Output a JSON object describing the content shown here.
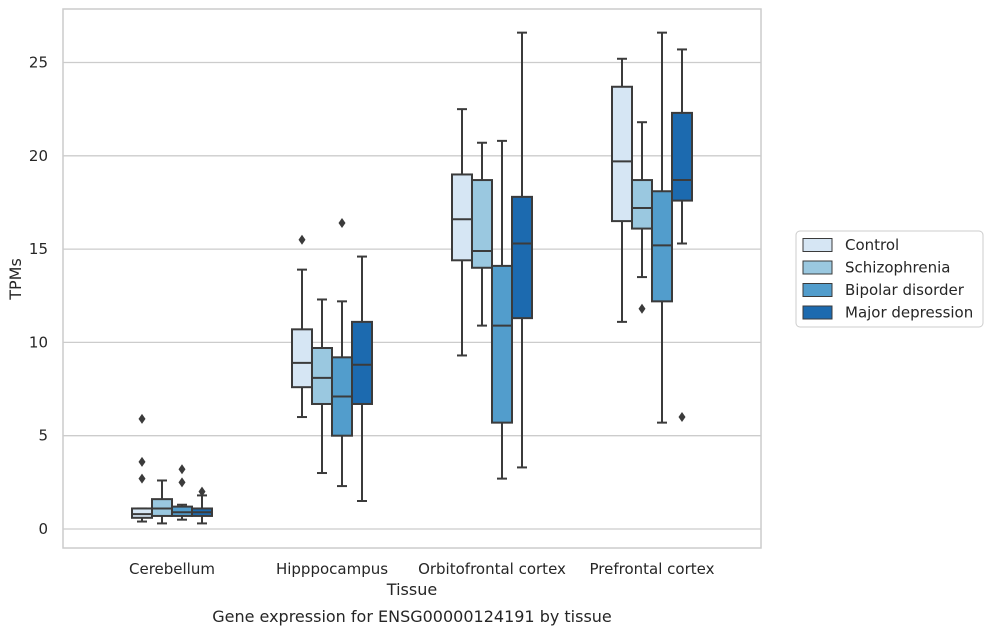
{
  "chart_data": {
    "type": "box",
    "xlabel": "Tissue",
    "ylabel": "TPMs",
    "ylim": [
      -1,
      28
    ],
    "yticks": [
      0,
      5,
      10,
      15,
      20,
      25
    ],
    "grid": "horizontal",
    "legend_position": "right",
    "categories": [
      "Cerebellum",
      "Hipppocampus",
      "Orbitofrontal cortex",
      "Prefrontal cortex"
    ],
    "series": [
      {
        "name": "Control",
        "color": "#d6e6f4",
        "boxes": [
          {
            "whisker_low": 0.4,
            "q1": 0.6,
            "median": 0.8,
            "q3": 1.1,
            "whisker_high": 1.1,
            "outliers": [
              2.7,
              3.6,
              5.9
            ]
          },
          {
            "whisker_low": 6.0,
            "q1": 7.6,
            "median": 8.9,
            "q3": 10.7,
            "whisker_high": 13.9,
            "outliers": [
              15.5
            ]
          },
          {
            "whisker_low": 9.3,
            "q1": 14.4,
            "median": 16.6,
            "q3": 19.0,
            "whisker_high": 22.5,
            "outliers": []
          },
          {
            "whisker_low": 11.1,
            "q1": 16.5,
            "median": 19.7,
            "q3": 23.7,
            "whisker_high": 25.2,
            "outliers": []
          }
        ]
      },
      {
        "name": "Schizophrenia",
        "color": "#9ac8e0",
        "boxes": [
          {
            "whisker_low": 0.3,
            "q1": 0.7,
            "median": 1.1,
            "q3": 1.6,
            "whisker_high": 2.6,
            "outliers": []
          },
          {
            "whisker_low": 3.0,
            "q1": 6.7,
            "median": 8.1,
            "q3": 9.7,
            "whisker_high": 12.3,
            "outliers": []
          },
          {
            "whisker_low": 10.9,
            "q1": 14.0,
            "median": 14.9,
            "q3": 18.7,
            "whisker_high": 20.7,
            "outliers": []
          },
          {
            "whisker_low": 13.5,
            "q1": 16.1,
            "median": 17.2,
            "q3": 18.7,
            "whisker_high": 21.8,
            "outliers": [
              11.8
            ]
          }
        ]
      },
      {
        "name": "Bipolar disorder",
        "color": "#529dcc",
        "boxes": [
          {
            "whisker_low": 0.5,
            "q1": 0.7,
            "median": 0.9,
            "q3": 1.2,
            "whisker_high": 1.3,
            "outliers": [
              2.5,
              3.2
            ]
          },
          {
            "whisker_low": 2.3,
            "q1": 5.0,
            "median": 7.1,
            "q3": 9.2,
            "whisker_high": 12.2,
            "outliers": [
              16.4
            ]
          },
          {
            "whisker_low": 2.7,
            "q1": 5.7,
            "median": 10.9,
            "q3": 14.1,
            "whisker_high": 20.8,
            "outliers": []
          },
          {
            "whisker_low": 5.7,
            "q1": 12.2,
            "median": 15.2,
            "q3": 18.1,
            "whisker_high": 26.6,
            "outliers": []
          }
        ]
      },
      {
        "name": "Major depression",
        "color": "#1c6aaf",
        "boxes": [
          {
            "whisker_low": 0.3,
            "q1": 0.7,
            "median": 0.9,
            "q3": 1.1,
            "whisker_high": 1.8,
            "outliers": [
              2.0
            ]
          },
          {
            "whisker_low": 1.5,
            "q1": 6.7,
            "median": 8.8,
            "q3": 11.1,
            "whisker_high": 14.6,
            "outliers": []
          },
          {
            "whisker_low": 3.3,
            "q1": 11.3,
            "median": 15.3,
            "q3": 17.8,
            "whisker_high": 26.6,
            "outliers": []
          },
          {
            "whisker_low": 15.3,
            "q1": 17.6,
            "median": 18.7,
            "q3": 22.3,
            "whisker_high": 25.7,
            "outliers": [
              6.0
            ]
          }
        ]
      }
    ]
  },
  "caption": "Gene expression for ENSG00000124191 by tissue"
}
